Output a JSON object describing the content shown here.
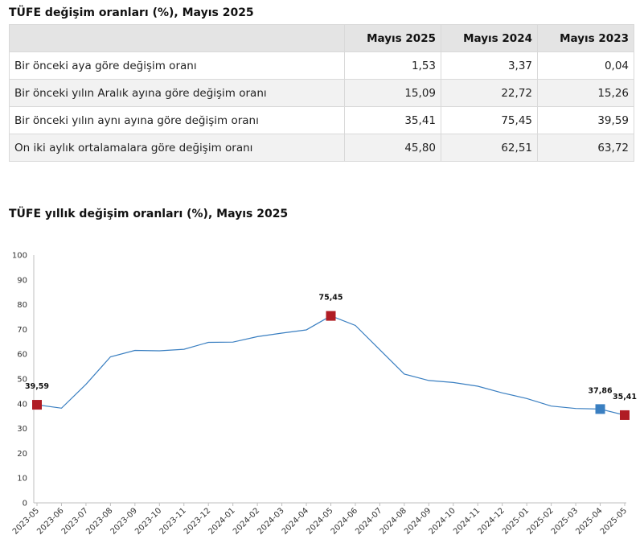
{
  "table_title": "TÜFE değişim oranları (%), Mayıs 2025",
  "table": {
    "headers": [
      "",
      "Mayıs 2025",
      "Mayıs 2024",
      "Mayıs 2023"
    ],
    "rows": [
      {
        "label": "Bir önceki aya göre değişim oranı",
        "values": [
          "1,53",
          "3,37",
          "0,04"
        ]
      },
      {
        "label": "Bir önceki yılın Aralık ayına göre değişim oranı",
        "values": [
          "15,09",
          "22,72",
          "15,26"
        ]
      },
      {
        "label": "Bir önceki yılın aynı ayına göre değişim oranı",
        "values": [
          "35,41",
          "75,45",
          "39,59"
        ]
      },
      {
        "label": "On iki aylık ortalamalara göre değişim oranı",
        "values": [
          "45,80",
          "62,51",
          "63,72"
        ]
      }
    ]
  },
  "chart_title": "TÜFE yıllık değişim oranları (%), Mayıs 2025",
  "chart_data": {
    "type": "line",
    "title": "TÜFE yıllık değişim oranları (%), Mayıs 2025",
    "xlabel": "",
    "ylabel": "",
    "ylim": [
      0,
      100
    ],
    "yticks": [
      0,
      10,
      20,
      30,
      40,
      50,
      60,
      70,
      80,
      90,
      100
    ],
    "grid": false,
    "x": [
      "2023-05",
      "2023-06",
      "2023-07",
      "2023-08",
      "2023-09",
      "2023-10",
      "2023-11",
      "2023-12",
      "2024-01",
      "2024-02",
      "2024-03",
      "2024-04",
      "2024-05",
      "2024-06",
      "2024-07",
      "2024-08",
      "2024-09",
      "2024-10",
      "2024-11",
      "2024-12",
      "2025-01",
      "2025-02",
      "2025-03",
      "2025-04",
      "2025-05"
    ],
    "series": [
      {
        "values": [
          39.59,
          38.21,
          47.83,
          58.94,
          61.53,
          61.36,
          61.98,
          64.77,
          64.86,
          67.07,
          68.5,
          69.8,
          75.45,
          71.6,
          61.78,
          51.97,
          49.38,
          48.58,
          47.09,
          44.38,
          42.12,
          39.05,
          38.1,
          37.86,
          35.41
        ]
      }
    ],
    "markers": [
      {
        "x": "2023-05",
        "value": 39.59,
        "label": "39,59",
        "color": "#b01c24"
      },
      {
        "x": "2024-05",
        "value": 75.45,
        "label": "75,45",
        "color": "#b01c24"
      },
      {
        "x": "2025-04",
        "value": 37.86,
        "label": "37,86",
        "color": "#3a7fc1"
      },
      {
        "x": "2025-05",
        "value": 35.41,
        "label": "35,41",
        "color": "#b01c24"
      }
    ],
    "line_color": "#3a7fc1",
    "axis_color": "#bfbfbf"
  }
}
